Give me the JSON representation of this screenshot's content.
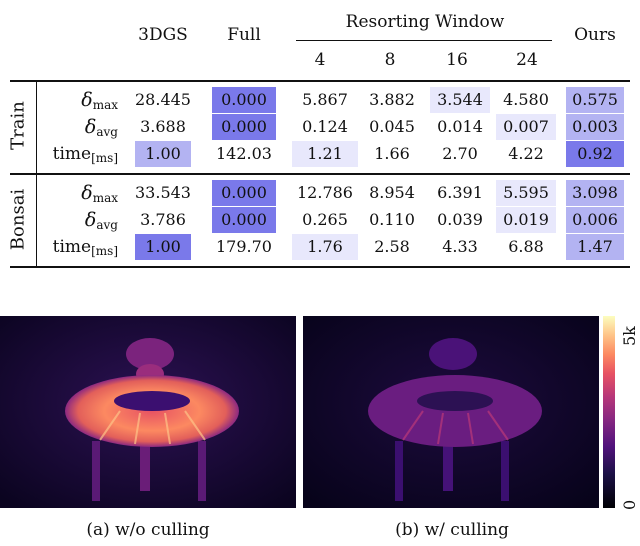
{
  "table": {
    "header": {
      "col_3dgs": "3DGS",
      "col_full": "Full",
      "resorting_window": "Resorting Window",
      "col_ours": "Ours",
      "windows": [
        "4",
        "8",
        "16",
        "24"
      ]
    },
    "groups": [
      {
        "name": "Train",
        "rows": [
          {
            "label_main": "δ",
            "label_sub": "max",
            "cells": [
              "28.445",
              "0.000",
              "5.867",
              "3.882",
              "3.544",
              "4.580",
              "0.575"
            ],
            "shade": [
              0,
              3,
              0,
              0,
              1,
              0,
              2
            ]
          },
          {
            "label_main": "δ",
            "label_sub": "avg",
            "cells": [
              "3.688",
              "0.000",
              "0.124",
              "0.045",
              "0.014",
              "0.007",
              "0.003"
            ],
            "shade": [
              0,
              3,
              0,
              0,
              0,
              1,
              2
            ]
          },
          {
            "label_main": "time",
            "label_sub": "[ms]",
            "cells": [
              "1.00",
              "142.03",
              "1.21",
              "1.66",
              "2.70",
              "4.22",
              "0.92"
            ],
            "shade": [
              2,
              0,
              1,
              0,
              0,
              0,
              3
            ]
          }
        ]
      },
      {
        "name": "Bonsai",
        "rows": [
          {
            "label_main": "δ",
            "label_sub": "max",
            "cells": [
              "33.543",
              "0.000",
              "12.786",
              "8.954",
              "6.391",
              "5.595",
              "3.098"
            ],
            "shade": [
              0,
              3,
              0,
              0,
              0,
              1,
              2
            ]
          },
          {
            "label_main": "δ",
            "label_sub": "avg",
            "cells": [
              "3.786",
              "0.000",
              "0.265",
              "0.110",
              "0.039",
              "0.019",
              "0.006"
            ],
            "shade": [
              0,
              3,
              0,
              0,
              0,
              1,
              2
            ]
          },
          {
            "label_main": "time",
            "label_sub": "[ms]",
            "cells": [
              "1.00",
              "179.70",
              "1.76",
              "2.58",
              "4.33",
              "6.88",
              "1.47"
            ],
            "shade": [
              3,
              0,
              1,
              0,
              0,
              0,
              2
            ]
          }
        ]
      }
    ],
    "shade_colors": [
      "#ffffff",
      "#e8e8fc",
      "#b3b3f2",
      "#7a79ea"
    ]
  },
  "figure": {
    "captions": [
      "(a) w/o culling",
      "(b) w/ culling"
    ],
    "colorbar": {
      "max_label": "5k",
      "min_label": "0"
    }
  }
}
